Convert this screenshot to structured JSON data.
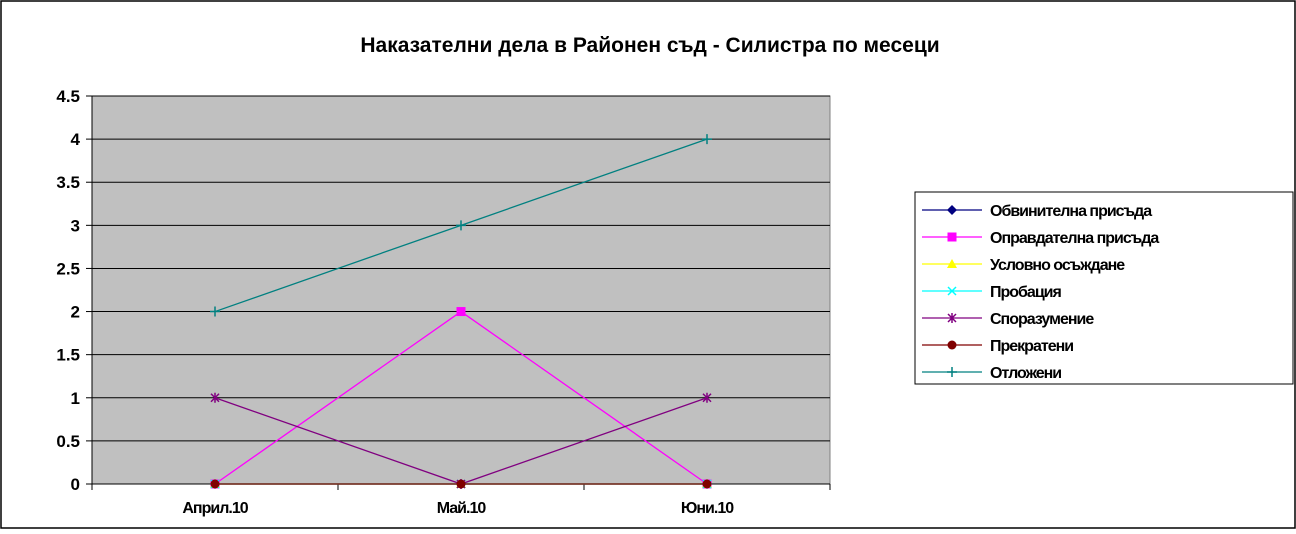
{
  "chart_data": {
    "type": "line",
    "title": "Наказателни дела в Районен съд - Силистра по месеци",
    "xlabel": "",
    "ylabel": "",
    "categories": [
      "Април.10",
      "Май.10",
      "Юни.10"
    ],
    "y_ticks": [
      "0",
      "0.5",
      "1",
      "1.5",
      "2",
      "2.5",
      "3",
      "3.5",
      "4",
      "4.5"
    ],
    "ylim": [
      0,
      4.5
    ],
    "grid": true,
    "legend_position": "right",
    "plot_background": "#c0c0c0",
    "series": [
      {
        "name": "Обвинителна присъда",
        "values": [
          0,
          0,
          0
        ],
        "color": "#000080",
        "marker": "diamond"
      },
      {
        "name": "Оправдателна присъда",
        "values": [
          0,
          2,
          0
        ],
        "color": "#ff00ff",
        "marker": "square"
      },
      {
        "name": "Условно осъждане",
        "values": [
          0,
          0,
          0
        ],
        "color": "#ffff00",
        "marker": "triangle"
      },
      {
        "name": "Пробация",
        "values": [
          0,
          0,
          0
        ],
        "color": "#00ffff",
        "marker": "x"
      },
      {
        "name": "Споразумение",
        "values": [
          1,
          0,
          1
        ],
        "color": "#800080",
        "marker": "star"
      },
      {
        "name": "Прекратени",
        "values": [
          0,
          0,
          0
        ],
        "color": "#800000",
        "marker": "circle"
      },
      {
        "name": "Отложени",
        "values": [
          2,
          3,
          4
        ],
        "color": "#008080",
        "marker": "plus"
      }
    ]
  }
}
